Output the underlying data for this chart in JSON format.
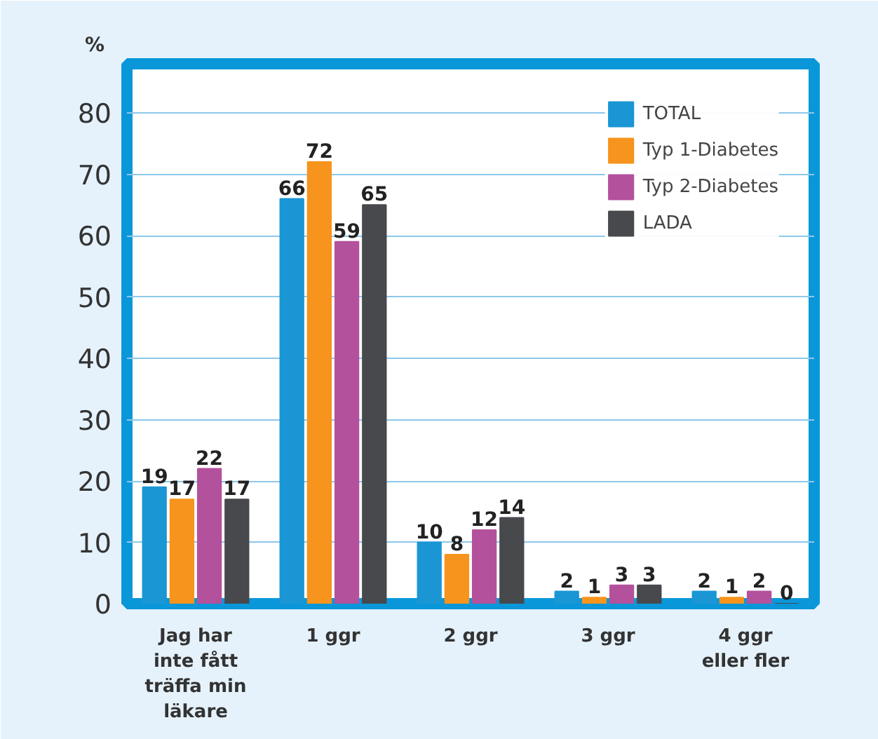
{
  "chart_data": {
    "type": "bar",
    "ylabel": "%",
    "categories": [
      "Jag har\ninte fått\nträffa min\nläkare",
      "1 ggr",
      "2 ggr",
      "3 ggr",
      "4 ggr\neller fler"
    ],
    "series": [
      {
        "name": "TOTAL",
        "color": "#1b96d4",
        "values": [
          19,
          66,
          10,
          2,
          2
        ]
      },
      {
        "name": "Typ 1-Diabetes",
        "color": "#f7941d",
        "values": [
          17,
          72,
          8,
          1,
          1
        ]
      },
      {
        "name": "Typ 2-Diabetes",
        "color": "#b4519d",
        "values": [
          22,
          59,
          12,
          3,
          2
        ]
      },
      {
        "name": "LADA",
        "color": "#47494d",
        "values": [
          17,
          65,
          14,
          3,
          0
        ]
      }
    ],
    "ylim": [
      0,
      88
    ],
    "yticks": [
      0,
      10,
      20,
      30,
      40,
      50,
      60,
      70,
      80
    ],
    "grid": "y",
    "legend": "top right",
    "data_labels": true
  }
}
